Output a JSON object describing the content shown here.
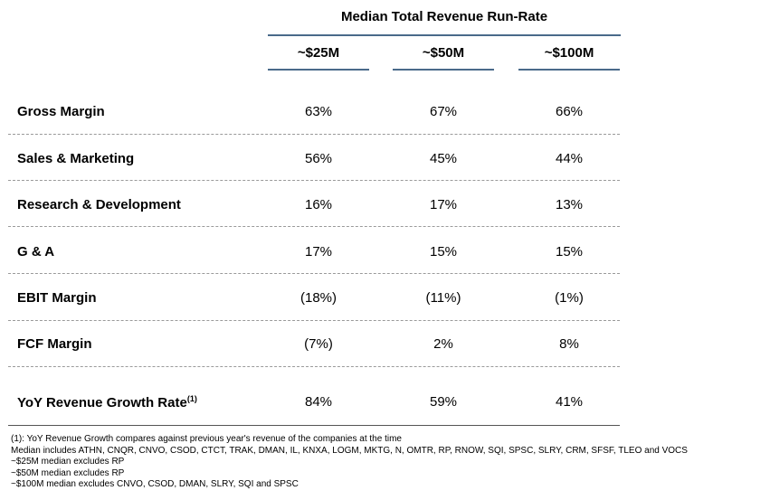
{
  "header": {
    "title": "Median Total Revenue Run-Rate"
  },
  "columns": [
    "~$25M",
    "~$50M",
    "~$100M"
  ],
  "rows": [
    {
      "label": "Gross Margin",
      "values": [
        "63%",
        "67%",
        "66%"
      ]
    },
    {
      "label": "Sales & Marketing",
      "values": [
        "56%",
        "45%",
        "44%"
      ]
    },
    {
      "label": "Research & Development",
      "values": [
        "16%",
        "17%",
        "13%"
      ]
    },
    {
      "label": "G & A",
      "values": [
        "17%",
        "15%",
        "15%"
      ]
    },
    {
      "label": "EBIT Margin",
      "values": [
        "(18%)",
        "(11%)",
        "(1%)"
      ]
    },
    {
      "label": "FCF Margin",
      "values": [
        "(7%)",
        "2%",
        "8%"
      ]
    },
    {
      "label": "YoY Revenue Growth Rate",
      "sup": "(1)",
      "values": [
        "84%",
        "59%",
        "41%"
      ]
    }
  ],
  "footnotes": [
    "(1): YoY Revenue Growth compares against previous year's revenue of the companies at the time",
    "Median includes ATHN, CNQR, CNVO, CSOD, CTCT, TRAK, DMAN, IL, KNXA, LOGM, MKTG, N, OMTR, RP, RNOW, SQI, SPSC, SLRY, CRM, SFSF, TLEO and VOCS",
    "~$25M median excludes RP",
    "~$50M median excludes RP",
    "~$100M median excludes CNVO, CSOD, DMAN, SLRY, SQI and SPSC"
  ]
}
